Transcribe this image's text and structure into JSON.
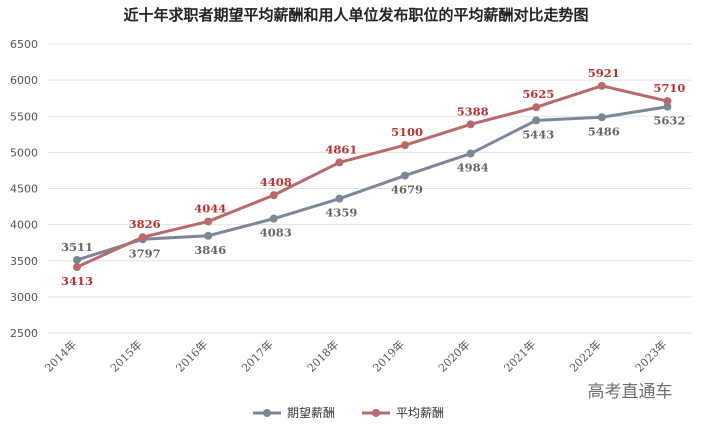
{
  "chart_data": {
    "type": "line",
    "title": "近十年求职者期望平均薪酬和用人单位发布职位的平均薪酬对比走势图",
    "categories": [
      "2014年",
      "2015年",
      "2016年",
      "2017年",
      "2018年",
      "2019年",
      "2020年",
      "2021年",
      "2022年",
      "2023年"
    ],
    "ylim": [
      2500,
      6500
    ],
    "yticks": [
      2500,
      3000,
      3500,
      4000,
      4500,
      5000,
      5500,
      6000,
      6500
    ],
    "grid": true,
    "legend": "bottom",
    "series": [
      {
        "name": "期望薪酬",
        "color": "#7b8799",
        "label_color": "#666666",
        "values": [
          3511,
          3797,
          3846,
          4083,
          4359,
          4679,
          4984,
          5443,
          5486,
          5632
        ]
      },
      {
        "name": "平均薪酬",
        "color": "#b86a6a",
        "label_color": "#b83232",
        "values": [
          3413,
          3826,
          4044,
          4408,
          4861,
          5100,
          5388,
          5625,
          5921,
          5710
        ]
      }
    ]
  },
  "watermark": "高考直通车"
}
